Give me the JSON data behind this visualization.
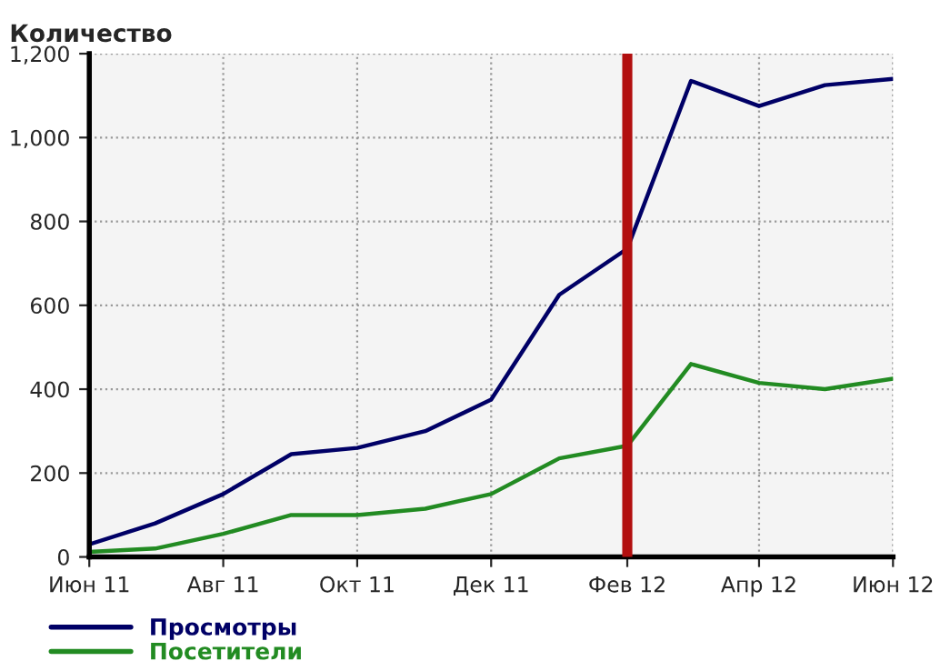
{
  "chart_data": {
    "type": "line",
    "title": "Количество",
    "x": [
      "2011-06",
      "2011-07",
      "2011-08",
      "2011-09",
      "2011-10",
      "2011-11",
      "2011-12",
      "2012-01",
      "2012-02",
      "2012-03",
      "2012-04",
      "2012-05",
      "2012-06"
    ],
    "series": [
      {
        "name": "Просмотры",
        "color": "#000066",
        "values": [
          30,
          80,
          150,
          245,
          260,
          300,
          375,
          625,
          735,
          1135,
          1075,
          1125,
          1140
        ]
      },
      {
        "name": "Посетители",
        "color": "#228b22",
        "values": [
          12,
          20,
          55,
          100,
          100,
          115,
          150,
          235,
          265,
          460,
          415,
          400,
          425
        ]
      }
    ],
    "xlim": [
      "2011-06",
      "2012-06"
    ],
    "xticks": [
      {
        "value": "2011-06",
        "label": "Июн 11"
      },
      {
        "value": "2011-08",
        "label": "Авг 11"
      },
      {
        "value": "2011-10",
        "label": "Окт 11"
      },
      {
        "value": "2011-12",
        "label": "Дек 11"
      },
      {
        "value": "2012-02",
        "label": "Фев 12"
      },
      {
        "value": "2012-04",
        "label": "Апр 12"
      },
      {
        "value": "2012-06",
        "label": "Июн 12"
      }
    ],
    "ylim": [
      0,
      1200
    ],
    "yticks": [
      0,
      200,
      400,
      600,
      800,
      {
        "value": 1000,
        "label": "1,000"
      },
      {
        "value": 1200,
        "label": "1,200"
      }
    ],
    "ref_lines": [
      {
        "axis": "x",
        "value": "2012-02",
        "color": "#b20f0f",
        "line_style": "solid"
      }
    ],
    "grid": true,
    "legend": "bottom left",
    "marker": "none",
    "line_style": "solid"
  }
}
